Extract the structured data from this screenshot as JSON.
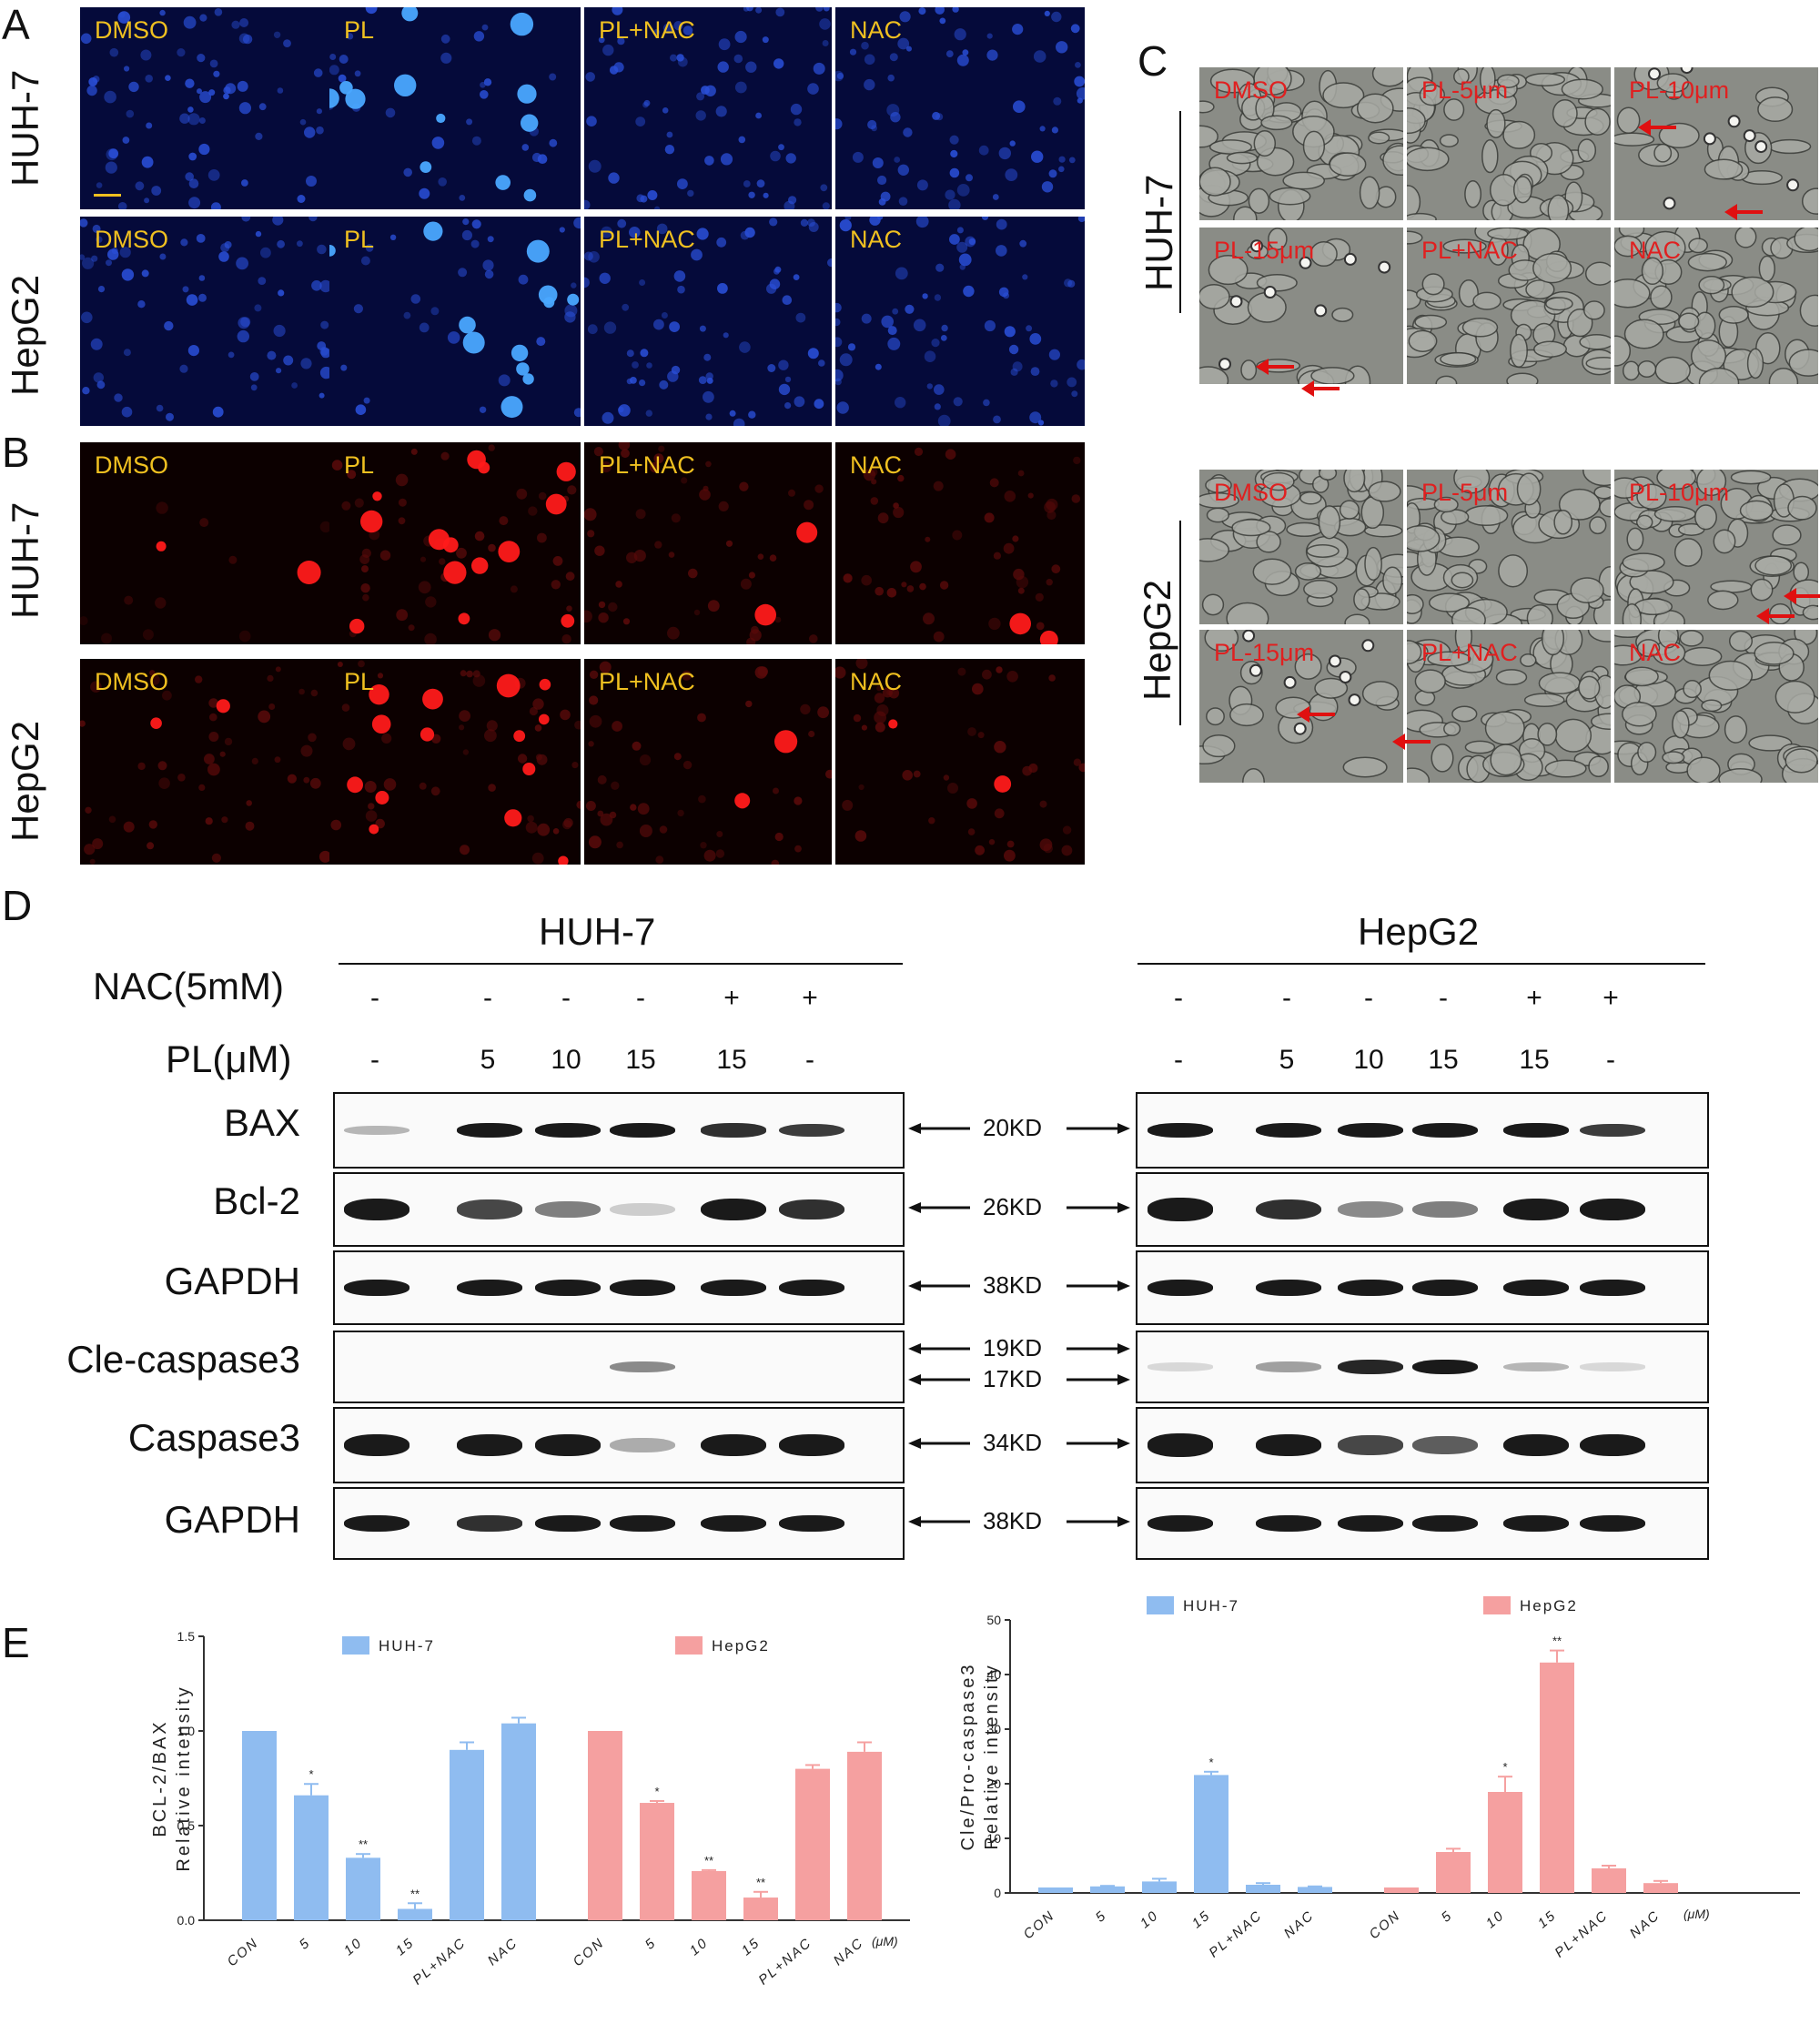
{
  "panels": {
    "A": "A",
    "B": "B",
    "C": "C",
    "D": "D",
    "E": "E"
  },
  "cell_lines": {
    "huh7": "HUH-7",
    "hepg2": "HepG2"
  },
  "treatments_AB": [
    "DMSO",
    "PL",
    "PL+NAC",
    "NAC"
  ],
  "treatments_C_row1": [
    "DMSO",
    "PL-5μm",
    "PL-10μm"
  ],
  "treatments_C_row2": [
    "PL-15μm",
    "PL+NAC",
    "NAC"
  ],
  "western": {
    "nac_label": "NAC(5mM)",
    "pl_label": "PL(μM)",
    "nac_signs": [
      "-",
      "-",
      "-",
      "-",
      "+",
      "+"
    ],
    "pl_values": [
      "-",
      "5",
      "10",
      "15",
      "15",
      "-"
    ],
    "proteins": [
      "BAX",
      "Bcl-2",
      "GAPDH",
      "Cle-caspase3",
      "Caspase3",
      "GAPDH"
    ],
    "kd": [
      "20KD",
      "26KD",
      "38KD",
      "19KD",
      "17KD",
      "34KD",
      "38KD"
    ],
    "colors": {
      "band": "#1a1a1a"
    }
  },
  "chart_data": [
    {
      "type": "bar",
      "ylabel_line1": "BCL-2/BAX",
      "ylabel_line2": "Relative intensity",
      "ylim": [
        0,
        1.5
      ],
      "yticks": [
        "0.0",
        "0.5",
        "1.0",
        "1.5"
      ],
      "unit": "(μM)",
      "categories": [
        "CON",
        "5",
        "10",
        "15",
        "PL+NAC",
        "NAC"
      ],
      "series": [
        {
          "name": "HUH-7",
          "color": "#8fbcf0",
          "values": [
            1.0,
            0.66,
            0.33,
            0.06,
            0.9,
            1.04
          ],
          "errors": [
            0,
            0.06,
            0.02,
            0.03,
            0.04,
            0.03
          ],
          "sig": [
            "",
            "*",
            "**",
            "**",
            "",
            ""
          ]
        },
        {
          "name": "HepG2",
          "color": "#f5a0a0",
          "values": [
            1.0,
            0.62,
            0.26,
            0.12,
            0.8,
            0.89
          ],
          "errors": [
            0,
            0.01,
            0.005,
            0.03,
            0.02,
            0.05
          ],
          "sig": [
            "",
            "*",
            "**",
            "**",
            "",
            ""
          ]
        }
      ]
    },
    {
      "type": "bar",
      "ylabel_line1": "Cle/Pro-caspase3",
      "ylabel_line2": "Relative intensity",
      "ylim": [
        0,
        50
      ],
      "yticks": [
        "0",
        "10",
        "20",
        "30",
        "40",
        "50"
      ],
      "unit": "(μM)",
      "categories": [
        "CON",
        "5",
        "10",
        "15",
        "PL+NAC",
        "NAC"
      ],
      "series": [
        {
          "name": "HUH-7",
          "color": "#8fbcf0",
          "values": [
            1.0,
            1.2,
            2.1,
            21.6,
            1.5,
            1.1
          ],
          "errors": [
            0,
            0.1,
            0.5,
            0.6,
            0.3,
            0.1
          ],
          "sig": [
            "",
            "",
            "",
            "*",
            "",
            ""
          ]
        },
        {
          "name": "HepG2",
          "color": "#f5a0a0",
          "values": [
            1.0,
            7.5,
            18.5,
            42.2,
            4.5,
            1.8
          ],
          "errors": [
            0,
            0.6,
            2.8,
            2.2,
            0.5,
            0.4
          ],
          "sig": [
            "",
            "",
            "*",
            "**",
            "",
            ""
          ]
        }
      ]
    }
  ]
}
